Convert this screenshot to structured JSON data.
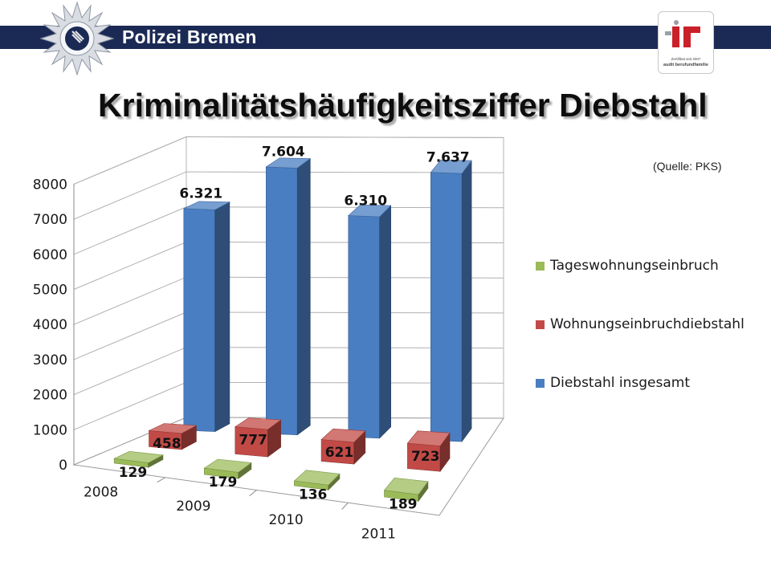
{
  "header": {
    "org_name": "Polizei Bremen",
    "cert": {
      "line1": "Zertifikat seit 2007",
      "line2": "audit berufundfamilie"
    }
  },
  "source_note": "(Quelle: PKS)",
  "colors": {
    "header_bar": "#1b2a55",
    "diebstahl": "#4a7ec2",
    "wohnung": "#c24a46",
    "tages": "#9bbb59"
  },
  "chart_data": {
    "type": "bar",
    "title": "Kriminalitätshäufigkeitsziffer Diebstahl",
    "categories": [
      "2008",
      "2009",
      "2010",
      "2011"
    ],
    "series": [
      {
        "name": "Tageswohnungseinbruch",
        "values": [
          129,
          179,
          136,
          189
        ],
        "labels": [
          "129",
          "179",
          "136",
          "189"
        ],
        "color": "#9bbb59"
      },
      {
        "name": "Wohnungseinbruchdiebstahl",
        "values": [
          458,
          777,
          621,
          723
        ],
        "labels": [
          "458",
          "777",
          "621",
          "723"
        ],
        "color": "#c24a46"
      },
      {
        "name": "Diebstahl insgesamt",
        "values": [
          6321,
          7604,
          6310,
          7637
        ],
        "labels": [
          "6.321",
          "7.604",
          "6.310",
          "7.637"
        ],
        "color": "#4a7ec2"
      }
    ],
    "yticks": [
      "0",
      "1000",
      "2000",
      "3000",
      "4000",
      "5000",
      "6000",
      "7000",
      "8000"
    ],
    "ylim": [
      0,
      8000
    ],
    "grid": true,
    "three_d": true,
    "legend_position": "right"
  }
}
